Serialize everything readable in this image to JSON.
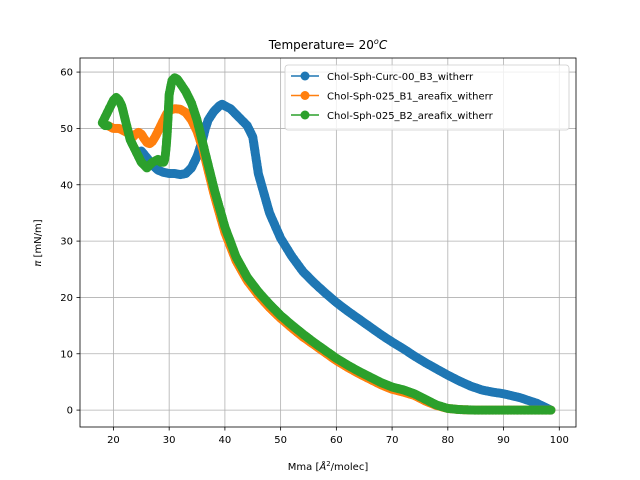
{
  "chart_data": {
    "type": "scatter",
    "title": "Temperature= 20",
    "title_superscript": "o",
    "title_suffix": "C",
    "xlabel_prefix": "Mma [",
    "xlabel_symbol": "Å",
    "xlabel_superscript": "2",
    "xlabel_suffix": "/molec]",
    "ylabel_symbol": "π",
    "ylabel_suffix": " [mN/m]",
    "xlim": [
      14,
      103
    ],
    "ylim": [
      -3,
      62.5
    ],
    "xticks": [
      20,
      30,
      40,
      50,
      60,
      70,
      80,
      90,
      100
    ],
    "yticks": [
      0,
      10,
      20,
      30,
      40,
      50,
      60
    ],
    "grid": true,
    "legend_position": "top-right",
    "series": [
      {
        "name": "Chol-Sph-Curc-00_B3_witherr",
        "color": "#1f77b4",
        "x": [
          98.5,
          96,
          93,
          90,
          88,
          86,
          84,
          82,
          80,
          78,
          76,
          74,
          72,
          70,
          68,
          66,
          64,
          62,
          60,
          58,
          56,
          54,
          52,
          50,
          48,
          46,
          45,
          44,
          43,
          42,
          41,
          40,
          39.5,
          39,
          38,
          37,
          36.5,
          36,
          35,
          34,
          33,
          32,
          31,
          30,
          29,
          28,
          27,
          26,
          25
        ],
        "y": [
          0,
          1.2,
          2.2,
          2.9,
          3.2,
          3.6,
          4.3,
          5.2,
          6.2,
          7.3,
          8.4,
          9.6,
          10.9,
          12.1,
          13.4,
          14.8,
          16.2,
          17.6,
          19.1,
          20.8,
          22.6,
          24.6,
          27.3,
          30.5,
          35,
          42,
          48.5,
          50.5,
          51.5,
          52.5,
          53.5,
          54,
          54.3,
          54,
          53,
          51.5,
          50,
          48,
          45,
          43,
          42,
          41.8,
          42,
          42,
          42.2,
          42.6,
          43.5,
          44.8,
          46
        ]
      },
      {
        "name": "Chol-Sph-025_B1_areafix_witherr",
        "color": "#ff7f0e",
        "x": [
          98.5,
          95,
          92,
          88,
          85,
          82,
          80,
          78,
          76,
          74,
          72,
          70,
          68,
          66,
          64,
          62,
          60,
          58,
          56,
          54,
          52,
          50,
          48,
          46,
          44,
          42,
          40,
          38,
          37,
          36,
          35,
          34,
          33,
          32,
          31,
          30,
          29.5,
          29,
          28.5,
          28,
          27.5,
          27,
          26.5,
          26,
          25.5,
          25,
          24.5,
          24,
          23.5,
          23,
          22,
          21,
          20,
          19
        ],
        "y": [
          0,
          0,
          0,
          0,
          0,
          0.1,
          0.3,
          0.8,
          1.6,
          2.6,
          3.2,
          3.7,
          4.5,
          5.5,
          6.5,
          7.6,
          8.8,
          10.2,
          11.6,
          13,
          14.6,
          16.3,
          18.2,
          20.4,
          23,
          26.5,
          31.5,
          38.5,
          42.5,
          46.5,
          49.5,
          51.5,
          52.8,
          53.4,
          53.5,
          53.2,
          52.5,
          51.5,
          50.5,
          49.5,
          48.5,
          47.7,
          47.3,
          47.5,
          48.2,
          49,
          49.3,
          49,
          48.5,
          49,
          49.5,
          50,
          50,
          50.5
        ]
      },
      {
        "name": "Chol-Sph-025_B2_areafix_witherr",
        "color": "#2ca02c",
        "x": [
          98.5,
          95,
          92,
          88,
          85,
          82,
          80,
          78,
          76,
          74,
          72,
          70,
          68,
          66,
          64,
          62,
          60,
          58,
          56,
          54,
          52,
          50,
          48,
          46,
          44,
          42,
          40,
          38,
          37,
          36,
          35,
          34,
          33,
          32,
          31.5,
          31,
          30.5,
          30,
          29.8,
          29.6,
          29.4,
          29.2,
          29,
          28.5,
          28,
          27,
          26,
          25.5,
          25,
          24.5,
          24,
          23.5,
          23,
          22.5,
          22,
          21.5,
          21,
          20.5,
          20,
          19.5,
          19,
          18.5,
          18,
          18.5,
          19
        ],
        "y": [
          0,
          0,
          0,
          0,
          0,
          0.1,
          0.3,
          0.9,
          1.9,
          2.9,
          3.6,
          4.1,
          4.9,
          5.9,
          6.9,
          8,
          9.2,
          10.6,
          12,
          13.5,
          15.1,
          16.8,
          18.8,
          21,
          23.6,
          27.2,
          32.5,
          39.5,
          43.5,
          47.5,
          51.5,
          54.5,
          56.5,
          58,
          58.7,
          59,
          58.5,
          56,
          52,
          48.5,
          46,
          44.5,
          44,
          44,
          44.5,
          44,
          43,
          43.5,
          44,
          45,
          46,
          47,
          48,
          50,
          52,
          54,
          55,
          55.5,
          55,
          54,
          53,
          52,
          51,
          50.5,
          50.5
        ]
      }
    ]
  }
}
